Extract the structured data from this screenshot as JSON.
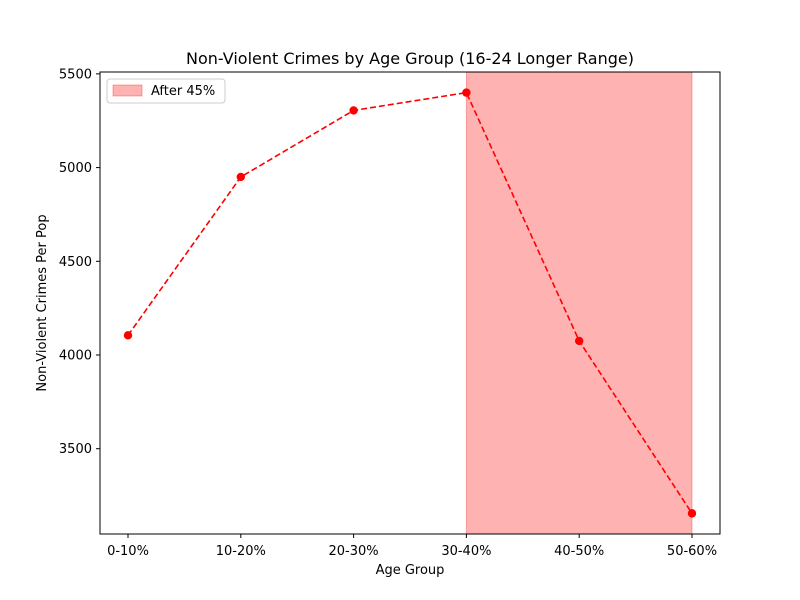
{
  "chart_data": {
    "type": "line",
    "title": "Non-Violent Crimes by Age Group (16-24 Longer Range)",
    "xlabel": "Age Group",
    "ylabel": "Non-Violent Crimes Per Pop",
    "categories": [
      "0-10%",
      "10-20%",
      "20-30%",
      "30-40%",
      "40-50%",
      "50-60%"
    ],
    "series": [
      {
        "values": [
          4105,
          4950,
          5305,
          5400,
          4075,
          3155
        ],
        "color": "#ff0000",
        "line_style": "dashed",
        "marker": "circle"
      }
    ],
    "ylim": [
      3045,
      5510
    ],
    "yticks": [
      3500,
      4000,
      4500,
      5000,
      5500
    ],
    "grid": false,
    "shaded_region": {
      "label": "After 45%",
      "from_category": "30-40%",
      "to_category": "50-60%",
      "color": "#ff0000",
      "opacity": 0.3
    },
    "legend": {
      "placement": "top-left",
      "entries": [
        "After 45%"
      ]
    }
  }
}
